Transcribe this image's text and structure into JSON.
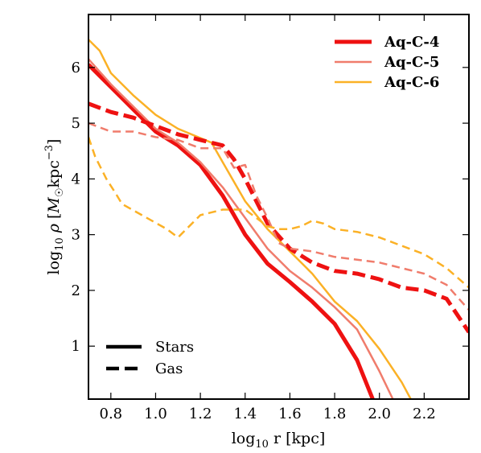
{
  "chart_data": {
    "type": "line",
    "xlabel": "log10 r [kpc]",
    "ylabel": "log10 ρ [M☉ kpc^-3]",
    "xlim": [
      0.7,
      2.4
    ],
    "ylim": [
      0.05,
      6.95
    ],
    "x_ticks": [
      {
        "value": 0.8,
        "label": "0.8"
      },
      {
        "value": 1.0,
        "label": "1.0"
      },
      {
        "value": 1.2,
        "label": "1.2"
      },
      {
        "value": 1.4,
        "label": "1.4"
      },
      {
        "value": 1.6,
        "label": "1.6"
      },
      {
        "value": 1.8,
        "label": "1.8"
      },
      {
        "value": 2.0,
        "label": "2.0"
      },
      {
        "value": 2.2,
        "label": "2.2"
      }
    ],
    "y_ticks": [
      {
        "value": 1,
        "label": "1"
      },
      {
        "value": 2,
        "label": "2"
      },
      {
        "value": 3,
        "label": "3"
      },
      {
        "value": 4,
        "label": "4"
      },
      {
        "value": 5,
        "label": "5"
      },
      {
        "value": 6,
        "label": "6"
      }
    ],
    "grid": false,
    "legend_series": {
      "placement": "top-right",
      "entries": [
        {
          "name": "Aq-C-4",
          "color": "#ee1111"
        },
        {
          "name": "Aq-C-5",
          "color": "#f07c6c"
        },
        {
          "name": "Aq-C-6",
          "color": "#fbb126"
        }
      ]
    },
    "legend_component": {
      "placement": "bottom-left",
      "entries": [
        {
          "name": "Stars",
          "style": "solid"
        },
        {
          "name": "Gas",
          "style": "dashed"
        }
      ]
    },
    "series": [
      {
        "name": "Aq-C-4",
        "component": "Stars",
        "color": "#ee1111",
        "width": 5,
        "dash": "solid",
        "x": [
          0.7,
          0.8,
          0.9,
          1.0,
          1.1,
          1.2,
          1.3,
          1.35,
          1.4,
          1.5,
          1.6,
          1.7,
          1.8,
          1.9,
          1.97
        ],
        "y": [
          6.05,
          5.65,
          5.25,
          4.85,
          4.6,
          4.25,
          3.7,
          3.35,
          3.0,
          2.48,
          2.15,
          1.8,
          1.4,
          0.75,
          0.05
        ]
      },
      {
        "name": "Aq-C-5",
        "component": "Stars",
        "color": "#f07c6c",
        "width": 2.5,
        "dash": "solid",
        "x": [
          0.7,
          0.8,
          0.9,
          1.0,
          1.1,
          1.2,
          1.3,
          1.4,
          1.5,
          1.6,
          1.7,
          1.8,
          1.9,
          2.0,
          2.06
        ],
        "y": [
          6.15,
          5.7,
          5.3,
          4.9,
          4.65,
          4.3,
          3.85,
          3.3,
          2.75,
          2.35,
          2.05,
          1.7,
          1.3,
          0.55,
          0.05
        ]
      },
      {
        "name": "Aq-C-6",
        "component": "Stars",
        "color": "#fbb126",
        "width": 2.5,
        "dash": "solid",
        "x": [
          0.7,
          0.75,
          0.8,
          0.9,
          1.0,
          1.1,
          1.25,
          1.3,
          1.4,
          1.5,
          1.6,
          1.7,
          1.8,
          1.9,
          2.0,
          2.1,
          2.14
        ],
        "y": [
          6.5,
          6.3,
          5.9,
          5.5,
          5.15,
          4.9,
          4.65,
          4.3,
          3.6,
          3.1,
          2.7,
          2.3,
          1.8,
          1.45,
          0.95,
          0.35,
          0.05
        ]
      },
      {
        "name": "Aq-C-4",
        "component": "Gas",
        "color": "#ee1111",
        "width": 5,
        "dash": "dashed",
        "x": [
          0.7,
          0.8,
          0.9,
          1.0,
          1.1,
          1.2,
          1.3,
          1.35,
          1.4,
          1.5,
          1.6,
          1.7,
          1.8,
          1.9,
          2.0,
          2.1,
          2.2,
          2.3,
          2.4
        ],
        "y": [
          5.35,
          5.2,
          5.1,
          4.95,
          4.8,
          4.7,
          4.6,
          4.35,
          4.0,
          3.2,
          2.75,
          2.5,
          2.35,
          2.3,
          2.2,
          2.05,
          2.0,
          1.85,
          1.25
        ]
      },
      {
        "name": "Aq-C-5",
        "component": "Gas",
        "color": "#f07c6c",
        "width": 2.5,
        "dash": "dashed",
        "x": [
          0.7,
          0.8,
          0.9,
          1.0,
          1.1,
          1.2,
          1.3,
          1.35,
          1.4,
          1.45,
          1.5,
          1.55,
          1.6,
          1.7,
          1.8,
          1.9,
          2.0,
          2.1,
          2.2,
          2.3,
          2.4
        ],
        "y": [
          5.0,
          4.85,
          4.85,
          4.75,
          4.7,
          4.55,
          4.55,
          4.2,
          4.25,
          3.7,
          3.3,
          2.85,
          2.75,
          2.7,
          2.6,
          2.55,
          2.5,
          2.4,
          2.3,
          2.1,
          1.65
        ]
      },
      {
        "name": "Aq-C-6",
        "component": "Gas",
        "color": "#fbb126",
        "width": 2.5,
        "dash": "dashed",
        "x": [
          0.7,
          0.73,
          0.78,
          0.82,
          0.85,
          1.05,
          1.1,
          1.2,
          1.3,
          1.4,
          1.5,
          1.55,
          1.6,
          1.65,
          1.7,
          1.75,
          1.8,
          1.9,
          2.0,
          2.1,
          2.2,
          2.3,
          2.4
        ],
        "y": [
          4.75,
          4.4,
          4.0,
          3.75,
          3.55,
          3.1,
          2.95,
          3.35,
          3.45,
          3.45,
          3.15,
          3.1,
          3.1,
          3.15,
          3.25,
          3.2,
          3.1,
          3.05,
          2.95,
          2.8,
          2.65,
          2.4,
          2.05
        ]
      }
    ]
  }
}
